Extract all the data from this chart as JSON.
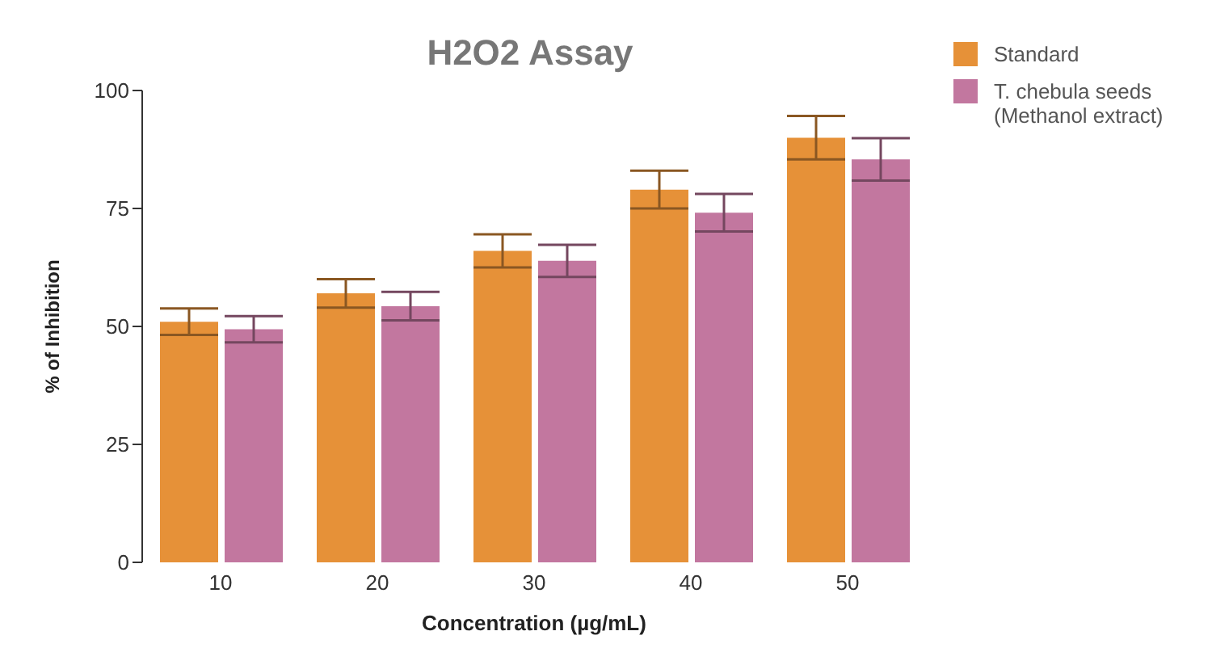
{
  "chart_data": {
    "type": "bar",
    "title": "H2O2 Assay",
    "xlabel": "Concentration (µg/mL)",
    "ylabel": "% of Inhibition",
    "categories": [
      "10",
      "20",
      "30",
      "40",
      "50"
    ],
    "series": [
      {
        "name": "Standard",
        "color": "#e69138",
        "values": [
          51,
          57,
          66,
          79,
          90
        ],
        "errors": [
          2.8,
          3,
          3.5,
          4,
          4.6
        ]
      },
      {
        "name": "T. chebula seeds (Methanol extract)",
        "color": "#c2779f",
        "values": [
          49.4,
          54.3,
          63.9,
          74.1,
          85.4
        ],
        "errors": [
          2.8,
          3,
          3.4,
          4,
          4.5
        ]
      }
    ],
    "ylim": [
      0,
      100
    ],
    "yticks": [
      0,
      25,
      50,
      75,
      100
    ],
    "grid": false,
    "legend": "top right"
  }
}
